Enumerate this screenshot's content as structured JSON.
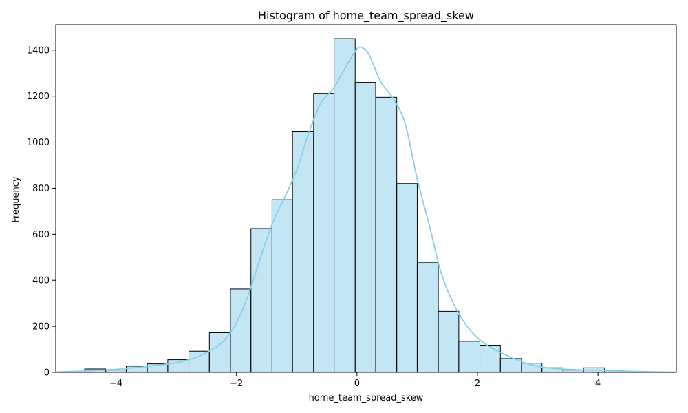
{
  "chart_data": {
    "type": "bar",
    "title": "Histogram of home_team_spread_skew",
    "xlabel": "home_team_spread_skew",
    "ylabel": "Frequency",
    "xlim": [
      -5.0,
      5.3
    ],
    "ylim": [
      0,
      1510
    ],
    "xticks": [
      -4,
      -2,
      0,
      2,
      4
    ],
    "yticks": [
      0,
      200,
      400,
      600,
      800,
      1000,
      1200,
      1400
    ],
    "bar_color": "#87CEEB",
    "bar_edge_color": "#000000",
    "kde_color": "#87CEEB",
    "grid": false,
    "legend": false,
    "bins": [
      {
        "x0": -4.86,
        "x1": -4.52,
        "count": 2
      },
      {
        "x0": -4.52,
        "x1": -4.17,
        "count": 15
      },
      {
        "x0": -4.17,
        "x1": -3.83,
        "count": 10
      },
      {
        "x0": -3.83,
        "x1": -3.48,
        "count": 27
      },
      {
        "x0": -3.48,
        "x1": -3.14,
        "count": 37
      },
      {
        "x0": -3.14,
        "x1": -2.79,
        "count": 55
      },
      {
        "x0": -2.79,
        "x1": -2.45,
        "count": 92
      },
      {
        "x0": -2.45,
        "x1": -2.1,
        "count": 172
      },
      {
        "x0": -2.1,
        "x1": -1.76,
        "count": 362
      },
      {
        "x0": -1.76,
        "x1": -1.41,
        "count": 625
      },
      {
        "x0": -1.41,
        "x1": -1.07,
        "count": 750
      },
      {
        "x0": -1.07,
        "x1": -0.72,
        "count": 1045
      },
      {
        "x0": -0.72,
        "x1": -0.38,
        "count": 1212
      },
      {
        "x0": -0.38,
        "x1": -0.03,
        "count": 1450
      },
      {
        "x0": -0.03,
        "x1": 0.31,
        "count": 1260
      },
      {
        "x0": 0.31,
        "x1": 0.66,
        "count": 1195
      },
      {
        "x0": 0.66,
        "x1": 1.0,
        "count": 820
      },
      {
        "x0": 1.0,
        "x1": 1.35,
        "count": 478
      },
      {
        "x0": 1.35,
        "x1": 1.69,
        "count": 265
      },
      {
        "x0": 1.69,
        "x1": 2.04,
        "count": 135
      },
      {
        "x0": 2.04,
        "x1": 2.38,
        "count": 118
      },
      {
        "x0": 2.38,
        "x1": 2.73,
        "count": 60
      },
      {
        "x0": 2.73,
        "x1": 3.07,
        "count": 40
      },
      {
        "x0": 3.07,
        "x1": 3.42,
        "count": 20
      },
      {
        "x0": 3.42,
        "x1": 3.76,
        "count": 10
      },
      {
        "x0": 3.76,
        "x1": 4.11,
        "count": 20
      },
      {
        "x0": 4.11,
        "x1": 4.45,
        "count": 10
      },
      {
        "x0": 4.45,
        "x1": 4.8,
        "count": 2
      }
    ],
    "kde": {
      "x": [
        -5.0,
        -4.6,
        -4.2,
        -3.8,
        -3.4,
        -3.0,
        -2.7,
        -2.4,
        -2.2,
        -2.0,
        -1.8,
        -1.6,
        -1.4,
        -1.2,
        -1.0,
        -0.8,
        -0.6,
        -0.4,
        -0.2,
        0.0,
        0.1,
        0.2,
        0.4,
        0.6,
        0.8,
        1.0,
        1.2,
        1.4,
        1.6,
        1.8,
        2.0,
        2.2,
        2.5,
        2.8,
        3.1,
        3.5,
        4.0,
        4.5,
        5.0,
        5.3
      ],
      "y": [
        2,
        5,
        10,
        18,
        28,
        42,
        62,
        100,
        140,
        215,
        340,
        500,
        650,
        760,
        880,
        1040,
        1170,
        1230,
        1320,
        1405,
        1408,
        1380,
        1260,
        1190,
        1080,
        840,
        640,
        430,
        300,
        210,
        150,
        112,
        72,
        40,
        22,
        13,
        9,
        5,
        2,
        1
      ]
    }
  }
}
